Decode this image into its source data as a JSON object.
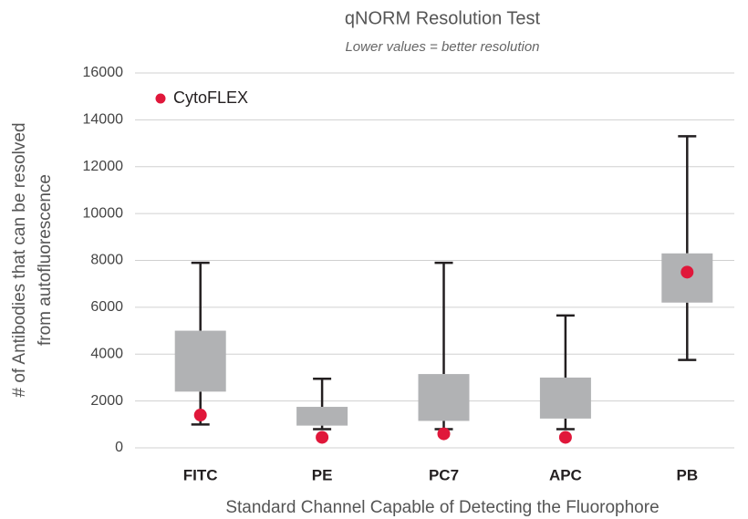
{
  "chart_data": {
    "type": "box",
    "title": "qNORM Resolution Test",
    "subtitle": "Lower values = better resolution",
    "x_label": "Standard Channel Capable of Detecting the Fluorophore",
    "y_label": [
      "# of Antibodies that can be resolved",
      "from autofluorescence"
    ],
    "categories": [
      "FITC",
      "PE",
      "PC7",
      "APC",
      "PB"
    ],
    "boxes": {
      "whisker_low": [
        1000,
        800,
        800,
        800,
        3750
      ],
      "box_low": [
        2400,
        950,
        1150,
        1250,
        6200
      ],
      "box_high": [
        5000,
        1750,
        3150,
        3000,
        8300
      ],
      "whisker_high": [
        7900,
        2950,
        7900,
        5650,
        13300
      ]
    },
    "box_color": "#b1b2b4",
    "whisker_color": "#231f20",
    "series": [
      {
        "name": "CytoFLEX",
        "color": "#e0173a",
        "values": [
          1400,
          450,
          600,
          450,
          7500
        ]
      }
    ],
    "ylim": [
      0,
      16000
    ],
    "yticks": [
      0,
      2000,
      4000,
      6000,
      8000,
      10000,
      12000,
      14000,
      16000
    ],
    "grid": true,
    "legend": "upper left"
  }
}
